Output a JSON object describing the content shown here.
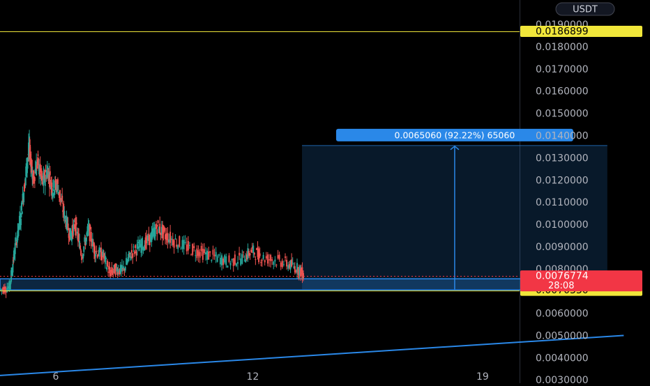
{
  "currency_button": "USDT",
  "chart_data": {
    "type": "candlestick",
    "title": "",
    "y_axis": {
      "ticks": [
        "0.0190000",
        "0.0180000",
        "0.0170000",
        "0.0160000",
        "0.0150000",
        "0.0140000",
        "0.0130000",
        "0.0120000",
        "0.0110000",
        "0.0100000",
        "0.0090000",
        "0.0080000",
        "0.0060000",
        "0.0050000",
        "0.0040000",
        "0.0030000"
      ],
      "range": [
        0.00285,
        0.0201
      ]
    },
    "x_axis": {
      "ticks": [
        "6",
        "12",
        "19"
      ],
      "range_days": [
        4.3,
        24.1
      ]
    },
    "price_series": [
      {
        "day": 4.3,
        "price": 0.00705
      },
      {
        "day": 4.6,
        "price": 0.0072
      },
      {
        "day": 4.75,
        "price": 0.0088
      },
      {
        "day": 4.95,
        "price": 0.0105
      },
      {
        "day": 5.1,
        "price": 0.0124
      },
      {
        "day": 5.2,
        "price": 0.0135
      },
      {
        "day": 5.3,
        "price": 0.012
      },
      {
        "day": 5.45,
        "price": 0.0128
      },
      {
        "day": 5.6,
        "price": 0.0118
      },
      {
        "day": 5.75,
        "price": 0.0125
      },
      {
        "day": 5.9,
        "price": 0.0116
      },
      {
        "day": 6.05,
        "price": 0.0118
      },
      {
        "day": 6.25,
        "price": 0.0105
      },
      {
        "day": 6.45,
        "price": 0.0095
      },
      {
        "day": 6.6,
        "price": 0.01
      },
      {
        "day": 6.8,
        "price": 0.0086
      },
      {
        "day": 7.0,
        "price": 0.0098
      },
      {
        "day": 7.2,
        "price": 0.0088
      },
      {
        "day": 7.45,
        "price": 0.0086
      },
      {
        "day": 7.65,
        "price": 0.0078
      },
      {
        "day": 7.85,
        "price": 0.008
      },
      {
        "day": 8.05,
        "price": 0.0079
      },
      {
        "day": 8.3,
        "price": 0.0087
      },
      {
        "day": 8.55,
        "price": 0.009
      },
      {
        "day": 8.85,
        "price": 0.0093
      },
      {
        "day": 9.1,
        "price": 0.0099
      },
      {
        "day": 9.35,
        "price": 0.0095
      },
      {
        "day": 9.7,
        "price": 0.0092
      },
      {
        "day": 10.1,
        "price": 0.0089
      },
      {
        "day": 10.5,
        "price": 0.0087
      },
      {
        "day": 10.9,
        "price": 0.0085
      },
      {
        "day": 11.3,
        "price": 0.0083
      },
      {
        "day": 11.7,
        "price": 0.0085
      },
      {
        "day": 12.0,
        "price": 0.0088
      },
      {
        "day": 12.3,
        "price": 0.0085
      },
      {
        "day": 12.7,
        "price": 0.0084
      },
      {
        "day": 13.1,
        "price": 0.0082
      },
      {
        "day": 13.4,
        "price": 0.008
      },
      {
        "day": 13.55,
        "price": 0.0077
      }
    ],
    "horizontal_lines": [
      {
        "price": 0.0186899,
        "label": "0.0186899",
        "color": "#f0e63a"
      },
      {
        "price": 0.007033,
        "label": "0.0070330",
        "color": "#f0e63a"
      }
    ],
    "current_price": {
      "price": 0.0076774,
      "label": "0.0076774",
      "countdown": "28:08",
      "color": "#f23645"
    },
    "trendline": {
      "start": {
        "day": 4.3,
        "price": 0.0032
      },
      "end": {
        "day": 23.3,
        "price": 0.005
      },
      "color": "#2a88e8"
    },
    "measure_tool": {
      "from": {
        "day": 13.5,
        "price": 0.00705
      },
      "to": {
        "day": 22.8,
        "price": 0.01355
      },
      "label": "0.0065060 (92.22%) 65060",
      "color": "#2a88e8"
    },
    "rectangle": {
      "from": {
        "day": 4.3,
        "price": 0.00705
      },
      "to": {
        "day": 21.7,
        "price": 0.00755
      },
      "color": "#2a88e8"
    }
  }
}
